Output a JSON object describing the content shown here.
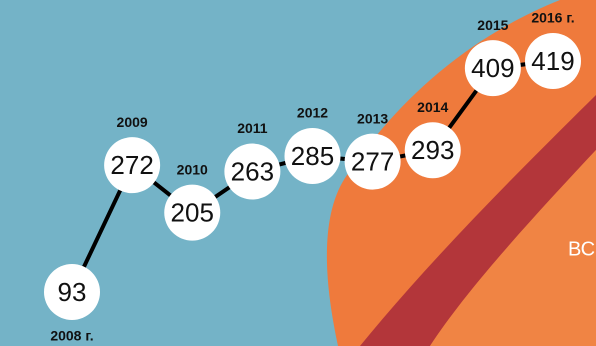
{
  "chart_data": {
    "type": "line",
    "categories": [
      "2008 г.",
      "2009",
      "2010",
      "2011",
      "2012",
      "2013",
      "2014",
      "2015",
      "2016 г."
    ],
    "values": [
      93,
      272,
      205,
      263,
      285,
      277,
      293,
      409,
      419
    ],
    "color": "#000000",
    "annotation": "ВС"
  }
}
